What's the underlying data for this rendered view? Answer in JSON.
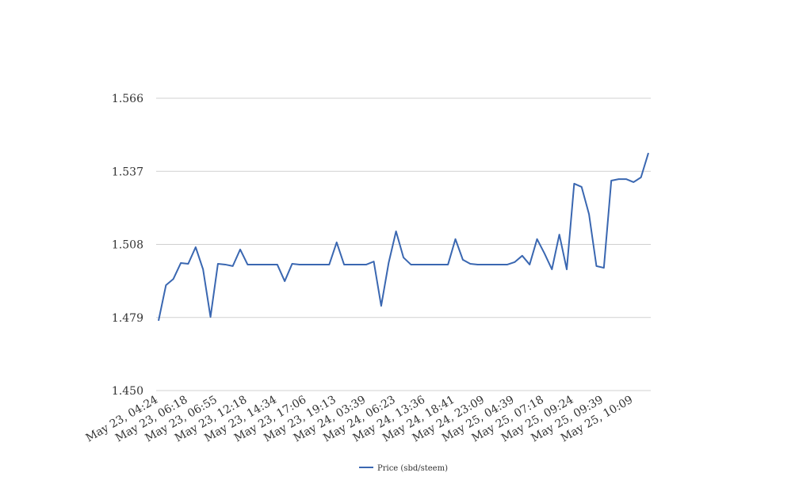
{
  "chart_data": {
    "type": "line",
    "categories": [
      "May 23, 04:24",
      null,
      null,
      null,
      "May 23, 06:18",
      null,
      null,
      null,
      "May 23, 06:55",
      null,
      null,
      null,
      "May 23, 12:18",
      null,
      null,
      null,
      "May 23, 14:34",
      null,
      null,
      null,
      "May 23, 17:06",
      null,
      null,
      null,
      "May 23, 19:13",
      null,
      null,
      null,
      "May 24, 03:39",
      null,
      null,
      null,
      "May 24, 06:23",
      null,
      null,
      null,
      "May 24, 13:36",
      null,
      null,
      null,
      "May 24, 18:41",
      null,
      null,
      null,
      "May 24, 23:09",
      null,
      null,
      null,
      "May 25, 04:39",
      null,
      null,
      null,
      "May 25, 07:18",
      null,
      null,
      null,
      "May 25, 09:24",
      null,
      null,
      null,
      "May 25, 09:39",
      null,
      null,
      null,
      "May 25, 10:09",
      null,
      null
    ],
    "series": [
      {
        "name": "Price (sbd/steem)",
        "color": "#3a67b1",
        "values": [
          1.4777,
          1.4918,
          1.4943,
          1.5006,
          1.5003,
          1.5069,
          1.4981,
          1.4792,
          1.5003,
          1.5,
          1.4994,
          1.506,
          1.5,
          1.5,
          1.5,
          1.5,
          1.5,
          1.4934,
          1.5003,
          1.5,
          1.5,
          1.5,
          1.5,
          1.5,
          1.5088,
          1.5,
          1.5,
          1.5,
          1.5,
          1.5012,
          1.4836,
          1.5006,
          1.5132,
          1.5028,
          1.5,
          1.5,
          1.5,
          1.5,
          1.5,
          1.5,
          1.5101,
          1.5019,
          1.5003,
          1.5,
          1.5,
          1.5,
          1.5,
          1.5,
          1.501,
          1.5035,
          1.5,
          1.5101,
          1.5044,
          1.4981,
          1.5119,
          1.4981,
          1.5321,
          1.5308,
          1.52,
          1.4994,
          1.4987,
          1.5333,
          1.5339,
          1.5339,
          1.5327,
          1.5346,
          1.5443
        ]
      }
    ],
    "ylim": [
      1.45,
      1.566
    ],
    "yticks": [
      {
        "value": 1.45,
        "label": "1.450"
      },
      1.479,
      1.508,
      1.537,
      1.566
    ],
    "grid": true,
    "legend": "bottom"
  }
}
